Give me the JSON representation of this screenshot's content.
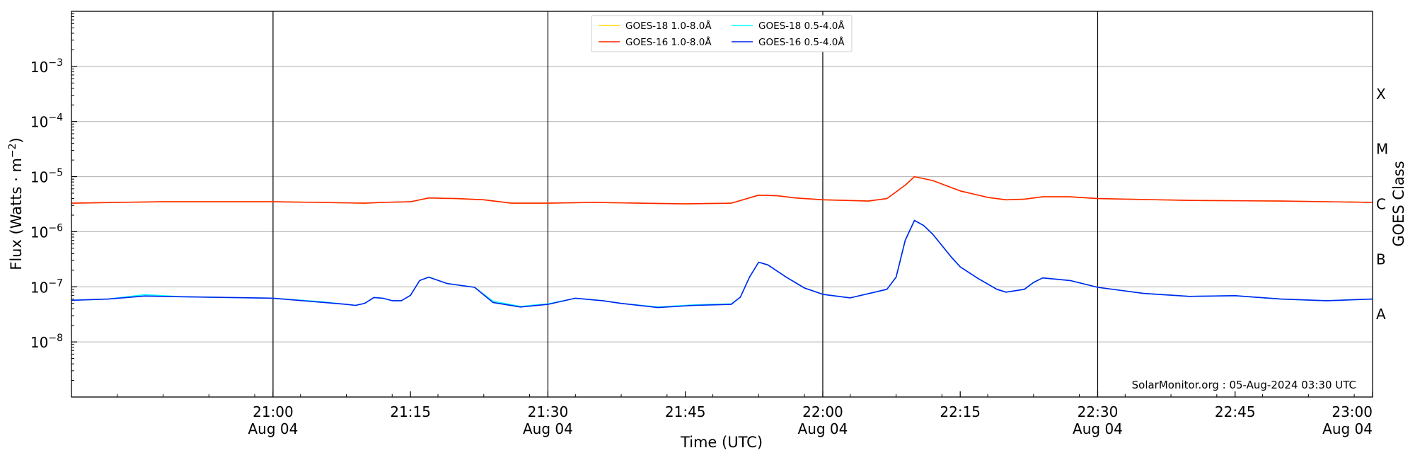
{
  "chart_data": {
    "type": "line",
    "title": "",
    "xlabel": "Time (UTC)",
    "ylabel": "Flux (Watts · m",
    "ylabel_superscript": "−2",
    "ylabel_close": ")",
    "right_label": "GOES Class",
    "yscale": "log",
    "ylim": [
      1e-09,
      0.01
    ],
    "xlim": [
      "20:38",
      "23:00"
    ],
    "y_ticks": [
      {
        "base": "10",
        "exp": "−3",
        "value": 0.001
      },
      {
        "base": "10",
        "exp": "−4",
        "value": 0.0001
      },
      {
        "base": "10",
        "exp": "−5",
        "value": 1e-05
      },
      {
        "base": "10",
        "exp": "−6",
        "value": 1e-06
      },
      {
        "base": "10",
        "exp": "−7",
        "value": 1e-07
      },
      {
        "base": "10",
        "exp": "−8",
        "value": 1e-08
      }
    ],
    "x_ticks": [
      {
        "time": "21:00",
        "line1": "21:00",
        "line2": "Aug 04"
      },
      {
        "time": "21:15",
        "line1": "21:15",
        "line2": ""
      },
      {
        "time": "21:30",
        "line1": "21:30",
        "line2": "Aug 04"
      },
      {
        "time": "21:45",
        "line1": "21:45",
        "line2": ""
      },
      {
        "time": "22:00",
        "line1": "22:00",
        "line2": "Aug 04"
      },
      {
        "time": "22:15",
        "line1": "22:15",
        "line2": ""
      },
      {
        "time": "22:30",
        "line1": "22:30",
        "line2": "Aug 04"
      },
      {
        "time": "22:45",
        "line1": "22:45",
        "line2": ""
      },
      {
        "time": "23:00",
        "line1": "23:00",
        "line2": "Aug 04"
      }
    ],
    "vertical_lines": [
      "21:00",
      "21:30",
      "22:00",
      "22:30"
    ],
    "goes_classes": [
      {
        "label": "X",
        "flux": 0.0003162
      },
      {
        "label": "M",
        "flux": 3.162e-05
      },
      {
        "label": "C",
        "flux": 3.162e-06
      },
      {
        "label": "B",
        "flux": 3.162e-07
      },
      {
        "label": "A",
        "flux": 3.162e-08
      }
    ],
    "grid": "horizontal at decades",
    "legend_position": "top-center",
    "legend": [
      {
        "name": "GOES-18 1.0-8.0Å",
        "color": "#ffd700"
      },
      {
        "name": "GOES-16 1.0-8.0Å",
        "color": "#ff2200"
      },
      {
        "name": "GOES-18 0.5-4.0Å",
        "color": "#00ffff"
      },
      {
        "name": "GOES-16 0.5-4.0Å",
        "color": "#0022ee"
      }
    ],
    "series": [
      {
        "name": "GOES-18 1.0-8.0Å",
        "color": "#ffd700",
        "points": [
          [
            "20:38",
            3.3e-06
          ],
          [
            "20:43",
            3.4e-06
          ],
          [
            "20:48",
            3.5e-06
          ],
          [
            "20:54",
            3.5e-06
          ],
          [
            "21:00",
            3.5e-06
          ],
          [
            "21:05",
            3.4e-06
          ],
          [
            "21:10",
            3.3e-06
          ],
          [
            "21:12",
            3.4e-06
          ],
          [
            "21:15",
            3.5e-06
          ],
          [
            "21:17",
            4.1e-06
          ],
          [
            "21:20",
            4e-06
          ],
          [
            "21:23",
            3.8e-06
          ],
          [
            "21:26",
            3.3e-06
          ],
          [
            "21:30",
            3.3e-06
          ],
          [
            "21:35",
            3.4e-06
          ],
          [
            "21:40",
            3.3e-06
          ],
          [
            "21:45",
            3.2e-06
          ],
          [
            "21:50",
            3.3e-06
          ],
          [
            "21:53",
            4.6e-06
          ],
          [
            "21:55",
            4.5e-06
          ],
          [
            "21:57",
            4.1e-06
          ],
          [
            "22:00",
            3.8e-06
          ],
          [
            "22:05",
            3.6e-06
          ],
          [
            "22:07",
            4e-06
          ],
          [
            "22:09",
            7e-06
          ],
          [
            "22:10",
            1e-05
          ],
          [
            "22:12",
            8.5e-06
          ],
          [
            "22:15",
            5.5e-06
          ],
          [
            "22:18",
            4.2e-06
          ],
          [
            "22:20",
            3.8e-06
          ],
          [
            "22:22",
            3.9e-06
          ],
          [
            "22:24",
            4.3e-06
          ],
          [
            "22:27",
            4.3e-06
          ],
          [
            "22:30",
            4e-06
          ],
          [
            "22:40",
            3.7e-06
          ],
          [
            "22:50",
            3.6e-06
          ],
          [
            "23:00",
            3.4e-06
          ]
        ]
      },
      {
        "name": "GOES-16 1.0-8.0Å",
        "color": "#ff2200",
        "points": [
          [
            "20:38",
            3.3e-06
          ],
          [
            "20:43",
            3.4e-06
          ],
          [
            "20:48",
            3.5e-06
          ],
          [
            "20:54",
            3.5e-06
          ],
          [
            "21:00",
            3.5e-06
          ],
          [
            "21:05",
            3.4e-06
          ],
          [
            "21:10",
            3.3e-06
          ],
          [
            "21:12",
            3.4e-06
          ],
          [
            "21:15",
            3.5e-06
          ],
          [
            "21:17",
            4.1e-06
          ],
          [
            "21:20",
            4e-06
          ],
          [
            "21:23",
            3.8e-06
          ],
          [
            "21:26",
            3.3e-06
          ],
          [
            "21:30",
            3.3e-06
          ],
          [
            "21:35",
            3.4e-06
          ],
          [
            "21:40",
            3.3e-06
          ],
          [
            "21:45",
            3.2e-06
          ],
          [
            "21:50",
            3.3e-06
          ],
          [
            "21:53",
            4.6e-06
          ],
          [
            "21:55",
            4.5e-06
          ],
          [
            "21:57",
            4.1e-06
          ],
          [
            "22:00",
            3.8e-06
          ],
          [
            "22:05",
            3.6e-06
          ],
          [
            "22:07",
            4e-06
          ],
          [
            "22:09",
            7e-06
          ],
          [
            "22:10",
            1e-05
          ],
          [
            "22:12",
            8.5e-06
          ],
          [
            "22:15",
            5.5e-06
          ],
          [
            "22:18",
            4.2e-06
          ],
          [
            "22:20",
            3.8e-06
          ],
          [
            "22:22",
            3.9e-06
          ],
          [
            "22:24",
            4.3e-06
          ],
          [
            "22:27",
            4.3e-06
          ],
          [
            "22:30",
            4e-06
          ],
          [
            "22:40",
            3.7e-06
          ],
          [
            "22:50",
            3.6e-06
          ],
          [
            "23:00",
            3.4e-06
          ]
        ]
      },
      {
        "name": "GOES-18 0.5-4.0Å",
        "color": "#00ffff",
        "points": [
          [
            "20:38",
            5.7e-08
          ],
          [
            "20:42",
            6e-08
          ],
          [
            "20:46",
            7.2e-08
          ],
          [
            "20:50",
            6.6e-08
          ],
          [
            "21:00",
            6.2e-08
          ],
          [
            "21:05",
            5.4e-08
          ],
          [
            "21:08",
            4.8e-08
          ],
          [
            "21:09",
            4.6e-08
          ],
          [
            "21:10",
            5e-08
          ],
          [
            "21:11",
            6.4e-08
          ],
          [
            "21:12",
            6.2e-08
          ],
          [
            "21:13",
            5.6e-08
          ],
          [
            "21:14",
            5.6e-08
          ],
          [
            "21:15",
            7e-08
          ],
          [
            "21:16",
            1.3e-07
          ],
          [
            "21:17",
            1.5e-07
          ],
          [
            "21:19",
            1.15e-07
          ],
          [
            "21:22",
            9.8e-08
          ],
          [
            "21:24",
            5.5e-08
          ],
          [
            "21:27",
            4.4e-08
          ],
          [
            "21:30",
            4.9e-08
          ],
          [
            "21:33",
            6.2e-08
          ],
          [
            "21:36",
            5.6e-08
          ],
          [
            "21:38",
            5e-08
          ],
          [
            "21:42",
            4.3e-08
          ],
          [
            "21:46",
            4.7e-08
          ],
          [
            "21:50",
            4.9e-08
          ],
          [
            "21:51",
            6.5e-08
          ],
          [
            "21:52",
            1.5e-07
          ],
          [
            "21:53",
            2.8e-07
          ],
          [
            "21:54",
            2.5e-07
          ],
          [
            "21:56",
            1.5e-07
          ],
          [
            "21:58",
            9.5e-08
          ],
          [
            "22:00",
            7.3e-08
          ],
          [
            "22:03",
            6.3e-08
          ],
          [
            "22:07",
            9e-08
          ],
          [
            "22:08",
            1.5e-07
          ],
          [
            "22:09",
            7e-07
          ],
          [
            "22:10",
            1.6e-06
          ],
          [
            "22:11",
            1.3e-06
          ],
          [
            "22:12",
            9e-07
          ],
          [
            "22:14",
            3.5e-07
          ],
          [
            "22:15",
            2.3e-07
          ],
          [
            "22:17",
            1.4e-07
          ],
          [
            "22:19",
            9e-08
          ],
          [
            "22:20",
            8e-08
          ],
          [
            "22:22",
            9e-08
          ],
          [
            "22:23",
            1.2e-07
          ],
          [
            "22:24",
            1.45e-07
          ],
          [
            "22:27",
            1.3e-07
          ],
          [
            "22:30",
            9.8e-08
          ],
          [
            "22:35",
            7.6e-08
          ],
          [
            "22:40",
            6.7e-08
          ],
          [
            "22:45",
            6.9e-08
          ],
          [
            "22:50",
            6e-08
          ],
          [
            "22:55",
            5.6e-08
          ],
          [
            "23:00",
            6e-08
          ]
        ]
      },
      {
        "name": "GOES-16 0.5-4.0Å",
        "color": "#0022ee",
        "points": [
          [
            "20:38",
            5.7e-08
          ],
          [
            "20:42",
            6e-08
          ],
          [
            "20:46",
            6.8e-08
          ],
          [
            "20:50",
            6.6e-08
          ],
          [
            "21:00",
            6.2e-08
          ],
          [
            "21:05",
            5.3e-08
          ],
          [
            "21:08",
            4.8e-08
          ],
          [
            "21:09",
            4.6e-08
          ],
          [
            "21:10",
            5e-08
          ],
          [
            "21:11",
            6.4e-08
          ],
          [
            "21:12",
            6.2e-08
          ],
          [
            "21:13",
            5.6e-08
          ],
          [
            "21:14",
            5.6e-08
          ],
          [
            "21:15",
            7e-08
          ],
          [
            "21:16",
            1.3e-07
          ],
          [
            "21:17",
            1.5e-07
          ],
          [
            "21:19",
            1.15e-07
          ],
          [
            "21:22",
            9.8e-08
          ],
          [
            "21:24",
            5.2e-08
          ],
          [
            "21:27",
            4.3e-08
          ],
          [
            "21:30",
            4.8e-08
          ],
          [
            "21:33",
            6.2e-08
          ],
          [
            "21:36",
            5.6e-08
          ],
          [
            "21:38",
            5e-08
          ],
          [
            "21:42",
            4.2e-08
          ],
          [
            "21:46",
            4.6e-08
          ],
          [
            "21:50",
            4.8e-08
          ],
          [
            "21:51",
            6.5e-08
          ],
          [
            "21:52",
            1.5e-07
          ],
          [
            "21:53",
            2.8e-07
          ],
          [
            "21:54",
            2.5e-07
          ],
          [
            "21:56",
            1.5e-07
          ],
          [
            "21:58",
            9.5e-08
          ],
          [
            "22:00",
            7.3e-08
          ],
          [
            "22:03",
            6.3e-08
          ],
          [
            "22:07",
            9e-08
          ],
          [
            "22:08",
            1.5e-07
          ],
          [
            "22:09",
            7e-07
          ],
          [
            "22:10",
            1.6e-06
          ],
          [
            "22:11",
            1.3e-06
          ],
          [
            "22:12",
            9e-07
          ],
          [
            "22:14",
            3.5e-07
          ],
          [
            "22:15",
            2.3e-07
          ],
          [
            "22:17",
            1.4e-07
          ],
          [
            "22:19",
            9e-08
          ],
          [
            "22:20",
            8e-08
          ],
          [
            "22:22",
            9e-08
          ],
          [
            "22:23",
            1.2e-07
          ],
          [
            "22:24",
            1.45e-07
          ],
          [
            "22:27",
            1.3e-07
          ],
          [
            "22:30",
            9.8e-08
          ],
          [
            "22:35",
            7.6e-08
          ],
          [
            "22:40",
            6.7e-08
          ],
          [
            "22:45",
            6.9e-08
          ],
          [
            "22:50",
            6e-08
          ],
          [
            "22:55",
            5.6e-08
          ],
          [
            "23:00",
            6e-08
          ]
        ]
      }
    ],
    "credit": "SolarMonitor.org : 05-Aug-2024 03:30 UTC"
  }
}
